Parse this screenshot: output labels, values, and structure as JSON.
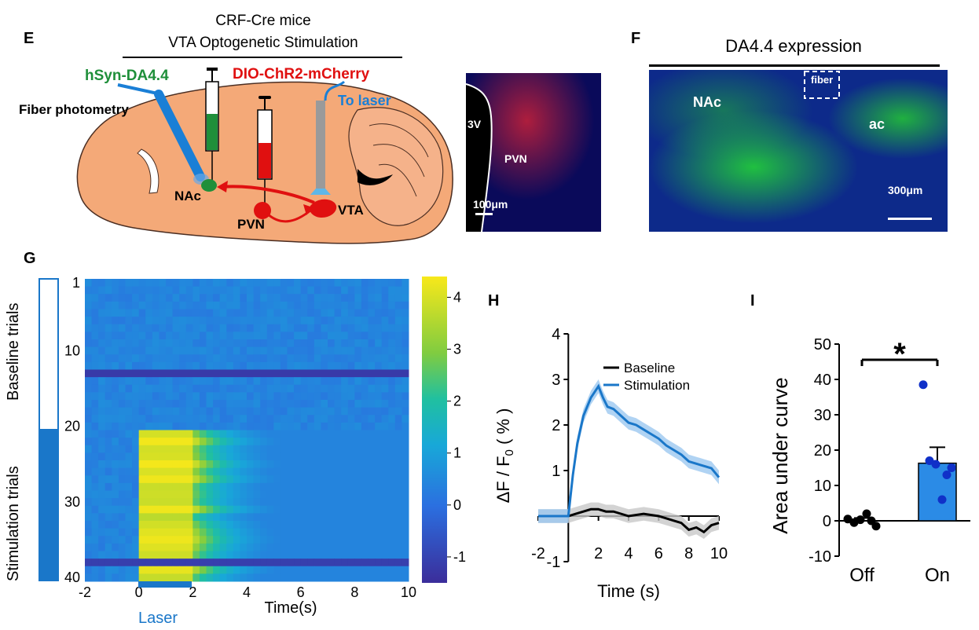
{
  "panel_e": {
    "letter": "E",
    "title_line1": "CRF-Cre mice",
    "title_line2": "VTA Optogenetic Stimulation",
    "virus_green": "hSyn-DA4.4",
    "virus_red": "DIO-ChR2-mCherry",
    "laser_label": "To laser",
    "fiber_label": "Fiber photometry",
    "region_nac": "NAc",
    "region_pvn": "PVN",
    "region_vta": "VTA",
    "inset_3v": "3V",
    "inset_pvn": "PVN",
    "inset_scale": "100μm"
  },
  "panel_f": {
    "letter": "F",
    "title": "DA4.4 expression",
    "fiber": "fiber",
    "nac": "NAc",
    "ac": "ac",
    "scale": "300μm"
  },
  "panel_g": {
    "letter": "G",
    "baseline_label": "Baseline trials",
    "stim_label": "Stimulation trials",
    "laser_label": "Laser",
    "colors": {
      "low": "#3b2d9a",
      "mid": "#1f9adf",
      "high": "#f5e01a",
      "bar": "#1a77c9"
    }
  },
  "panel_h": {
    "letter": "H",
    "colors": {
      "baseline": "#000000",
      "stimulation": "#1a77c9"
    }
  },
  "panel_i": {
    "letter": "I",
    "significance": "*",
    "colors": {
      "on": "#2b8be6",
      "on_points": "#1030c8",
      "off_points": "#000000"
    }
  },
  "chart_data": [
    {
      "id": "heatmap_g",
      "type": "heatmap",
      "xlabel": "Time(s)",
      "x_ticks": [
        -2,
        0,
        2,
        4,
        6,
        8,
        10
      ],
      "y_ticks": [
        1,
        10,
        20,
        30,
        40
      ],
      "xlim": [
        -2,
        10
      ],
      "trials": 40,
      "baseline_trials": [
        1,
        20
      ],
      "stimulation_trials": [
        21,
        40
      ],
      "laser_on": [
        0,
        2
      ],
      "colorbar_ticks": [
        4,
        3,
        2,
        1,
        0,
        -1
      ],
      "color_range": [
        -1.5,
        4.4
      ]
    },
    {
      "id": "line_h",
      "type": "line",
      "xlabel": "Time (s)",
      "ylabel": "ΔF / F",
      "ylabel_sub": "0",
      "ylabel_tail": "( % )",
      "x_ticks": [
        -2,
        2,
        4,
        6,
        8,
        10
      ],
      "y_ticks": [
        4,
        3,
        2,
        1,
        -1
      ],
      "xlim": [
        -2,
        10
      ],
      "ylim": [
        -1,
        4
      ],
      "legend": "top-right",
      "series": [
        {
          "name": "Baseline",
          "x": [
            -2,
            -1,
            0,
            0.5,
            1,
            1.5,
            2,
            2.5,
            3,
            4,
            5,
            6,
            7,
            7.5,
            8,
            8.5,
            9,
            9.5,
            10
          ],
          "y": [
            0,
            0,
            0,
            0.05,
            0.1,
            0.15,
            0.15,
            0.1,
            0.1,
            0,
            0.05,
            0,
            -0.1,
            -0.15,
            -0.3,
            -0.25,
            -0.35,
            -0.2,
            -0.15
          ]
        },
        {
          "name": "Stimulation",
          "x": [
            -2,
            -1,
            0,
            0.3,
            0.6,
            1,
            1.5,
            2,
            2.3,
            2.6,
            3,
            3.5,
            4,
            4.5,
            5,
            5.5,
            6,
            6.5,
            7,
            7.5,
            8,
            8.5,
            9,
            9.5,
            10
          ],
          "y": [
            0,
            0,
            0,
            0.9,
            1.6,
            2.2,
            2.6,
            2.85,
            2.6,
            2.4,
            2.35,
            2.2,
            2.05,
            2.0,
            1.9,
            1.8,
            1.7,
            1.55,
            1.45,
            1.35,
            1.2,
            1.15,
            1.1,
            1.05,
            0.85
          ]
        }
      ]
    },
    {
      "id": "bar_i",
      "type": "bar",
      "ylabel": "Area under curve",
      "categories": [
        "Off",
        "On"
      ],
      "values": [
        0.2,
        16.3
      ],
      "errors": [
        0.6,
        4.5
      ],
      "y_ticks": [
        50,
        40,
        30,
        20,
        10,
        0,
        -10
      ],
      "ylim": [
        -10,
        50
      ],
      "points": {
        "Off": [
          0.5,
          -0.5,
          0.3,
          2,
          0,
          -1.5
        ],
        "On": [
          38.5,
          17,
          16,
          6,
          13,
          15
        ]
      }
    }
  ]
}
